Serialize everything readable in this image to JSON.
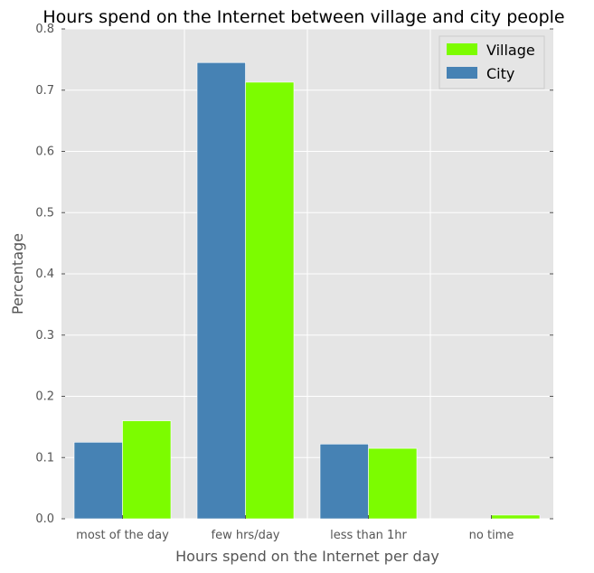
{
  "chart_data": {
    "type": "bar",
    "title": "Hours spend on the Internet between village and city people",
    "xlabel": "Hours spend on the Internet per day",
    "ylabel": "Percentage",
    "categories": [
      "most of the day",
      "few hrs/day",
      "less than 1hr",
      "no time"
    ],
    "series": [
      {
        "name": "City",
        "color": "#4682b4",
        "values": [
          0.125,
          0.745,
          0.122,
          0.0
        ]
      },
      {
        "name": "Village",
        "color": "#7cfc00",
        "values": [
          0.16,
          0.713,
          0.115,
          0.006
        ]
      }
    ],
    "legend_order": [
      "Village",
      "City"
    ],
    "ylim": [
      0,
      0.8
    ],
    "yticks": [
      "0.0",
      "0.1",
      "0.2",
      "0.3",
      "0.4",
      "0.5",
      "0.6",
      "0.7",
      "0.8"
    ],
    "grid": true,
    "legend_position": "top-right",
    "background_color": "#e5e5e5"
  }
}
